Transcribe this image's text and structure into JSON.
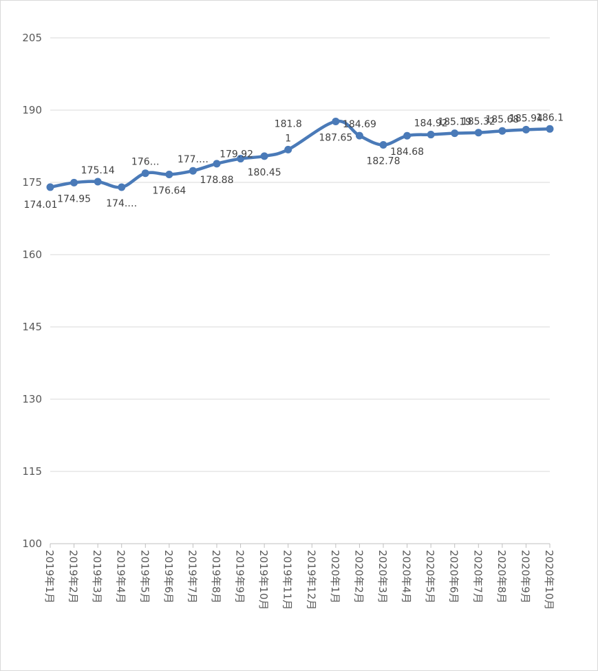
{
  "chart_data": {
    "type": "line",
    "title": "",
    "xlabel": "",
    "ylabel": "",
    "ylim": [
      100,
      205
    ],
    "yticks": [
      100,
      115,
      130,
      145,
      160,
      175,
      190,
      205
    ],
    "grid": true,
    "smooth": true,
    "color": "#4a7ab8",
    "categories": [
      "2019年1月",
      "2019年2月",
      "2019年3月",
      "2019年4月",
      "2019年5月",
      "2019年6月",
      "2019年7月",
      "2019年8月",
      "2019年9月",
      "2019年10月",
      "2019年11月",
      "2019年12月",
      "2020年1月",
      "2020年2月",
      "2020年3月",
      "2020年4月",
      "2020年5月",
      "2020年6月",
      "2020年7月",
      "2020年8月",
      "2020年9月",
      "2020年10月"
    ],
    "values": [
      174.01,
      174.95,
      175.14,
      174.0,
      176.9,
      176.64,
      177.4,
      178.88,
      179.92,
      180.45,
      181.81,
      null,
      187.65,
      184.69,
      182.78,
      184.68,
      184.92,
      185.19,
      185.32,
      185.68,
      185.94,
      186.1
    ],
    "data_labels": [
      {
        "text": "174.01",
        "pos": "below-left"
      },
      {
        "text": "174.95",
        "pos": "below"
      },
      {
        "text": "175.14",
        "pos": "above"
      },
      {
        "text": "174.…",
        "pos": "below"
      },
      {
        "text": "176…",
        "pos": "above"
      },
      {
        "text": "176.64",
        "pos": "below"
      },
      {
        "text": "177.…",
        "pos": "above"
      },
      {
        "text": "178.88",
        "pos": "below"
      },
      {
        "text": "179.92",
        "pos": "above-left"
      },
      {
        "text": "180.45",
        "pos": "below"
      },
      {
        "text": "181.8\n1",
        "pos": "above"
      },
      null,
      {
        "text": "187.65",
        "pos": "below"
      },
      {
        "text": "184.69",
        "pos": "above"
      },
      {
        "text": "182.78",
        "pos": "below"
      },
      {
        "text": "184.68",
        "pos": "below"
      },
      {
        "text": "184.92",
        "pos": "above"
      },
      {
        "text": "185.19",
        "pos": "above"
      },
      {
        "text": "185.32",
        "pos": "above"
      },
      {
        "text": "185.68",
        "pos": "above"
      },
      {
        "text": "185.94",
        "pos": "above"
      },
      {
        "text": "186.1",
        "pos": "above"
      }
    ]
  }
}
